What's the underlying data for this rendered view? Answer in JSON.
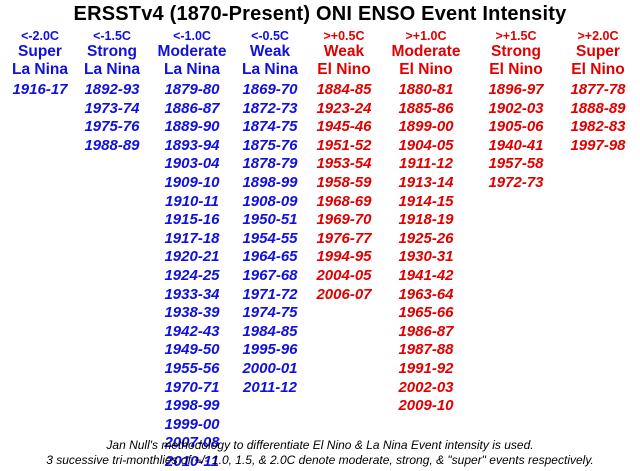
{
  "title": "ERSSTv4 (1870-Present) ONI ENSO Event Intensity",
  "columns": [
    {
      "threshold": "<-2.0C",
      "category": [
        "Super",
        "La Nina"
      ],
      "color": "#1010e0",
      "years": [
        "1916-17"
      ]
    },
    {
      "threshold": "<-1.5C",
      "category": [
        "Strong",
        "La Nina"
      ],
      "color": "#1010e0",
      "years": [
        "1892-93",
        "1973-74",
        "1975-76",
        "1988-89"
      ]
    },
    {
      "threshold": "<-1.0C",
      "category": [
        "Moderate",
        "La Nina"
      ],
      "color": "#1010e0",
      "years": [
        "1879-80",
        "1886-87",
        "1889-90",
        "1893-94",
        "1903-04",
        "1909-10",
        "1910-11",
        "1915-16",
        "1917-18",
        "1920-21",
        "1924-25",
        "1933-34",
        "1938-39",
        "1942-43",
        "1949-50",
        "1955-56",
        "1970-71",
        "1998-99",
        "1999-00",
        "2007-08",
        "2010-11"
      ]
    },
    {
      "threshold": "<-0.5C",
      "category": [
        "Weak",
        "La Nina"
      ],
      "color": "#1010e0",
      "years": [
        "1869-70",
        "1872-73",
        "1874-75",
        "1875-76",
        "1878-79",
        "1898-99",
        "1908-09",
        "1950-51",
        "1954-55",
        "1964-65",
        "1967-68",
        "1971-72",
        "1974-75",
        "1984-85",
        "1995-96",
        "2000-01",
        "2011-12"
      ]
    },
    {
      "threshold": ">+0.5C",
      "category": [
        "Weak",
        "El Nino"
      ],
      "color": "#e00000",
      "years": [
        "1884-85",
        "1923-24",
        "1945-46",
        "1951-52",
        "1953-54",
        "1958-59",
        "1968-69",
        "1969-70",
        "1976-77",
        "1994-95",
        "2004-05",
        "2006-07"
      ]
    },
    {
      "threshold": ">+1.0C",
      "category": [
        "Moderate",
        "El Nino"
      ],
      "color": "#e00000",
      "years": [
        "1880-81",
        "1885-86",
        "1899-00",
        "1904-05",
        "1911-12",
        "1913-14",
        "1914-15",
        "1918-19",
        "1925-26",
        "1930-31",
        "1941-42",
        "1963-64",
        "1965-66",
        "1986-87",
        "1987-88",
        "1991-92",
        "2002-03",
        "2009-10"
      ]
    },
    {
      "threshold": ">+1.5C",
      "category": [
        "Strong",
        "El Nino"
      ],
      "color": "#e00000",
      "years": [
        "1896-97",
        "1902-03",
        "1905-06",
        "1940-41",
        "1957-58",
        "1972-73"
      ]
    },
    {
      "threshold": ">+2.0C",
      "category": [
        "Super",
        "El Nino"
      ],
      "color": "#e00000",
      "years": [
        "1877-78",
        "1888-89",
        "1982-83",
        "1997-98"
      ]
    }
  ],
  "footer": {
    "line1": "Jan Null's methodology to differentiate El Nino & La Nina Event intensity is used.",
    "line2": "3 sucessive tri-monthlies of +/- 1.0, 1.5, & 2.0C denote moderate, strong, & \"super\" events respectively."
  }
}
